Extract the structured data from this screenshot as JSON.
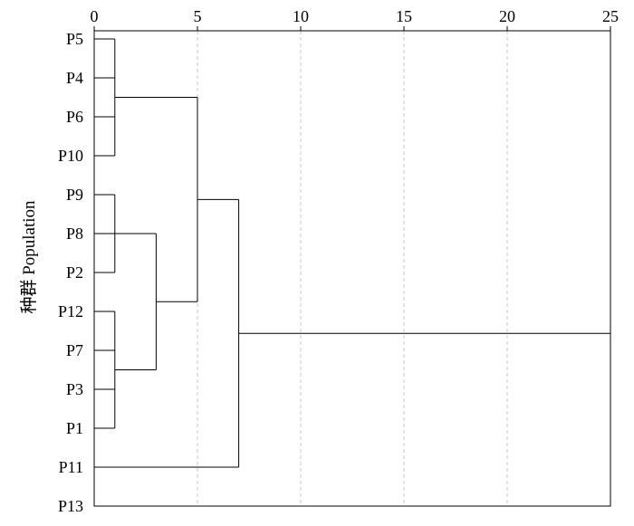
{
  "chart_data": {
    "type": "dendrogram",
    "y_axis_label": "种群 Population",
    "x_axis": {
      "min": 0,
      "max": 25,
      "ticks": [
        0,
        5,
        10,
        15,
        20,
        25
      ],
      "grid": true,
      "grid_style": "dashed"
    },
    "leaves": [
      "P5",
      "P4",
      "P6",
      "P10",
      "P9",
      "P8",
      "P2",
      "P12",
      "P7",
      "P3",
      "P1",
      "P11",
      "P13"
    ],
    "merges": [
      {
        "members": [
          "P5",
          "P4",
          "P6",
          "P10"
        ],
        "height": 1
      },
      {
        "members": [
          "P9",
          "P8",
          "P2"
        ],
        "height": 1
      },
      {
        "members": [
          "P12",
          "P7",
          "P3",
          "P1"
        ],
        "height": 1
      },
      {
        "members": [
          "P9",
          "P8",
          "P2",
          "P12",
          "P7",
          "P3",
          "P1"
        ],
        "height": 3
      },
      {
        "members": [
          "P5",
          "P4",
          "P6",
          "P10",
          "P9",
          "P8",
          "P2",
          "P12",
          "P7",
          "P3",
          "P1"
        ],
        "height": 5
      },
      {
        "members": [
          "P5",
          "P4",
          "P6",
          "P10",
          "P9",
          "P8",
          "P2",
          "P12",
          "P7",
          "P3",
          "P1",
          "P11"
        ],
        "height": 7
      },
      {
        "members": [
          "P5",
          "P4",
          "P6",
          "P10",
          "P9",
          "P8",
          "P2",
          "P12",
          "P7",
          "P3",
          "P1",
          "P11",
          "P13"
        ],
        "height": 25
      }
    ],
    "colors": {
      "line": "#000000",
      "grid": "#c8c8c8"
    }
  }
}
